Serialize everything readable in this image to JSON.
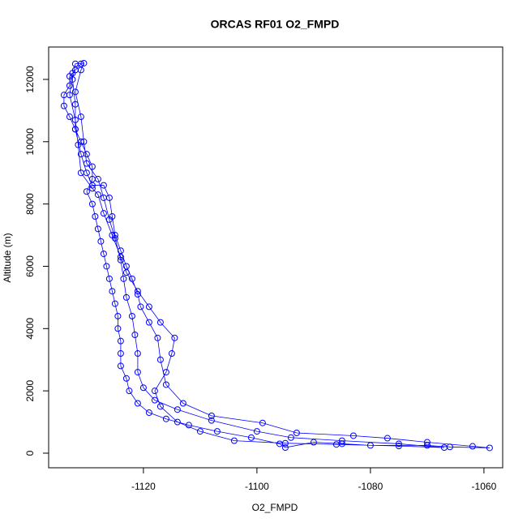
{
  "chart_data": {
    "type": "scatter",
    "title": "ORCAS RF01 O2_FMPD",
    "xlabel": "O2_FMPD",
    "ylabel": "Altitude (m)",
    "color": "#0000ff",
    "x": [
      -1131,
      -1132,
      -1133,
      -1133,
      -1134,
      -1134,
      -1133,
      -1132,
      -1131,
      -1130,
      -1129,
      -1129,
      -1130,
      -1129,
      -1128.5,
      -1128,
      -1127.5,
      -1127,
      -1126.5,
      -1126,
      -1125.5,
      -1125,
      -1124.5,
      -1124.5,
      -1124,
      -1124,
      -1124,
      -1123,
      -1122.5,
      -1121,
      -1119,
      -1116,
      -1112,
      -1107,
      -1101,
      -1096,
      -1095,
      -1090,
      -1085,
      -1080,
      -1070,
      -1066,
      -1059,
      -1062,
      -1070,
      -1077,
      -1083,
      -1093,
      -1099,
      -1108,
      -1113,
      -1116,
      -1117,
      -1117.5,
      -1119,
      -1120.5,
      -1121,
      -1122,
      -1123,
      -1124,
      -1125,
      -1125.5,
      -1126,
      -1127,
      -1129,
      -1130,
      -1131,
      -1132,
      -1132,
      -1132.5,
      -1132,
      -1130.5,
      -1131,
      -1132,
      -1131,
      -1130.5,
      -1130,
      -1128,
      -1127,
      -1126,
      -1125,
      -1124,
      -1123.5,
      -1123,
      -1122,
      -1121.5,
      -1121,
      -1121,
      -1120,
      -1118,
      -1114,
      -1108,
      -1100,
      -1094,
      -1085,
      -1075,
      -1067,
      -1075,
      -1086,
      -1095,
      -1104,
      -1110,
      -1114,
      -1117,
      -1118,
      -1116,
      -1115,
      -1114.5,
      -1117,
      -1119,
      -1121,
      -1123,
      -1124,
      -1125.5,
      -1127,
      -1128,
      -1129,
      -1131,
      -1131.5,
      -1132,
      -1133,
      -1132.5
    ],
    "values": [
      12500,
      12300,
      12100,
      11800,
      11500,
      11150,
      10800,
      10400,
      10000,
      9600,
      9200,
      8800,
      8400,
      8000,
      7600,
      7200,
      6800,
      6400,
      6000,
      5600,
      5200,
      4800,
      4400,
      4000,
      3600,
      3200,
      2800,
      2400,
      2000,
      1600,
      1300,
      1100,
      900,
      700,
      500,
      300,
      180,
      350,
      300,
      250,
      250,
      200,
      170,
      220,
      350,
      480,
      560,
      650,
      970,
      1200,
      1600,
      2200,
      3000,
      3700,
      4200,
      4700,
      5100,
      5600,
      6000,
      6500,
      7000,
      7600,
      8200,
      8600,
      8600,
      9000,
      9600,
      10400,
      11200,
      12000,
      12500,
      12520,
      12300,
      11600,
      10800,
      10000,
      9300,
      8800,
      8200,
      7500,
      6900,
      6200,
      5600,
      5000,
      4400,
      3800,
      3200,
      2600,
      2100,
      1700,
      1400,
      1050,
      700,
      500,
      400,
      300,
      180,
      230,
      280,
      320,
      400,
      700,
      1000,
      1500,
      2000,
      2600,
      3200,
      3700,
      4200,
      4700,
      5200,
      5800,
      6300,
      7000,
      7700,
      8300,
      8500,
      9000,
      9900,
      10700,
      11500,
      12200
    ],
    "xlim": [
      -1136.7,
      -1056.7
    ],
    "ylim": [
      -469,
      13040
    ],
    "xticks": [
      -1120,
      -1100,
      -1080,
      -1060
    ],
    "yticks": [
      0,
      2000,
      4000,
      6000,
      8000,
      10000,
      12000
    ]
  }
}
